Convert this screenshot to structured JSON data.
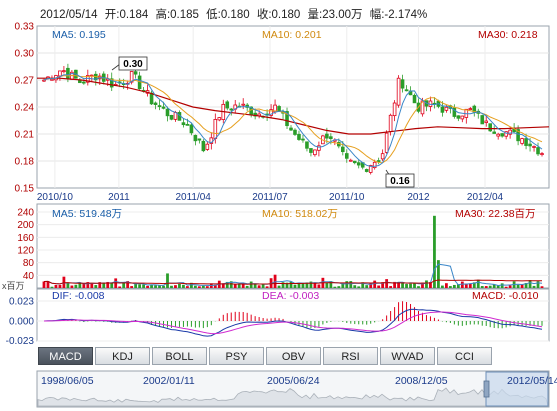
{
  "header": {
    "date": "2012/05/14",
    "open": "开:0.184",
    "high": "高:0.185",
    "low": "低:0.180",
    "close": "收:0.180",
    "volume": "量:23.00万",
    "change": "幅:-2.174%"
  },
  "colors": {
    "up": "#e0001a",
    "down": "#2a9d2a",
    "ma5": "#3a86c8",
    "ma10": "#e6a020",
    "ma30": "#b30000",
    "dif": "#1a3aa8",
    "dea": "#d02ad0",
    "grid": "#dddddd"
  },
  "tabs": [
    "MACD",
    "KDJ",
    "BOLL",
    "PSY",
    "OBV",
    "RSI",
    "WVAD",
    "CCI"
  ],
  "active_tab": "MACD",
  "chart_data": [
    {
      "type": "candlestick",
      "legend": {
        "ma5": "MA5: 0.195",
        "ma10": "MA10: 0.201",
        "ma30": "MA30: 0.218"
      },
      "y_ticks": [
        "0.33",
        "0.30",
        "0.27",
        "0.24",
        "0.21",
        "0.18",
        "0.15"
      ],
      "ylim": [
        0.15,
        0.33
      ],
      "x_ticks": [
        "2010/10",
        "2011",
        "2011/04",
        "2011/07",
        "2011/10",
        "2012",
        "2012/04"
      ],
      "annotations": {
        "max": "0.30",
        "min": "0.16"
      },
      "ma30_line": [
        0.272,
        0.272,
        0.27,
        0.266,
        0.262,
        0.256,
        0.248,
        0.24,
        0.236,
        0.233,
        0.23,
        0.226,
        0.22,
        0.214,
        0.21,
        0.21,
        0.213,
        0.216,
        0.218,
        0.217,
        0.216,
        0.216,
        0.217,
        0.218
      ],
      "close_trend": [
        0.27,
        0.282,
        0.268,
        0.276,
        0.264,
        0.275,
        0.248,
        0.232,
        0.222,
        0.192,
        0.238,
        0.242,
        0.232,
        0.24,
        0.212,
        0.19,
        0.212,
        0.178,
        0.172,
        0.186,
        0.272,
        0.24,
        0.243,
        0.232,
        0.236,
        0.218,
        0.212,
        0.204,
        0.19
      ]
    },
    {
      "type": "bar",
      "legend": {
        "ma5": "MA5: 519.48万",
        "ma10": "MA10: 518.02万",
        "ma30": "MA30: 22.38百万"
      },
      "y_ticks": [
        "240",
        "200",
        "160",
        "120",
        "80",
        "40"
      ],
      "ylim": [
        0,
        240
      ],
      "unit": "x百万"
    },
    {
      "type": "macd",
      "legend": {
        "dif": "DIF: -0.008",
        "dea": "DEA: -0.003",
        "macd": "MACD: -0.010"
      },
      "y_ticks": [
        "0.023",
        "0.000",
        "-0.023"
      ],
      "ylim": [
        -0.023,
        0.023
      ]
    }
  ],
  "timeline": {
    "labels": [
      "1998/06/05",
      "2002/01/11",
      "2005/06/24",
      "2008/12/05",
      "2012/05/14"
    ]
  }
}
